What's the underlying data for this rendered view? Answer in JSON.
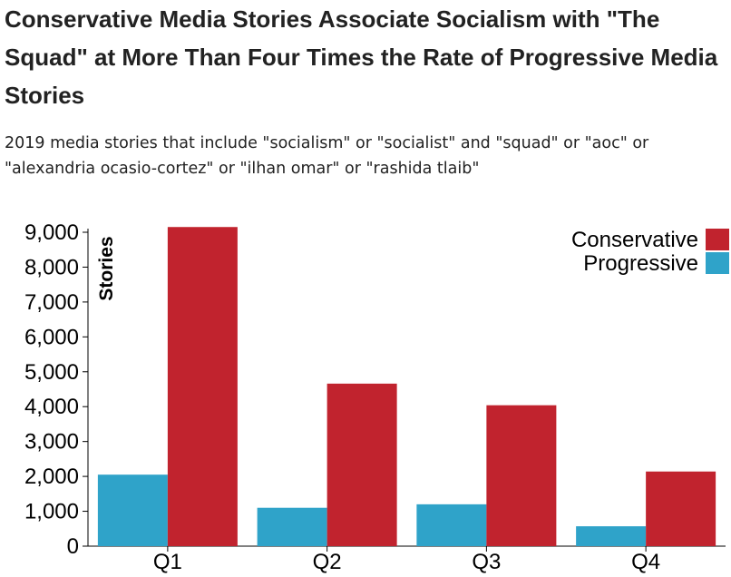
{
  "chart_data": {
    "type": "bar",
    "title": "Conservative Media Stories Associate Socialism with \"The Squad\" at More Than Four Times the Rate of Progressive Media Stories",
    "subtitle": "2019 media stories that include \"socialism\" or \"socialist\" and \"squad\" or \"aoc\" or \"alexandria ocasio-cortez\" or \"ilhan omar\" or \"rashida tlaib\"",
    "xlabel": "",
    "ylabel": "Stories",
    "ylim": [
      0,
      9000
    ],
    "yticks": [
      0,
      1000,
      2000,
      3000,
      4000,
      5000,
      6000,
      7000,
      8000,
      9000
    ],
    "ytick_labels": [
      "0",
      "1,000",
      "2,000",
      "3,000",
      "4,000",
      "5,000",
      "6,000",
      "7,000",
      "8,000",
      "9,000"
    ],
    "categories": [
      "Q1",
      "Q2",
      "Q3",
      "Q4"
    ],
    "series": [
      {
        "name": "Progressive",
        "color": "#2fa3c9",
        "values": [
          2050,
          1100,
          1200,
          570
        ]
      },
      {
        "name": "Conservative",
        "color": "#c1232e",
        "values": [
          9150,
          4660,
          4040,
          2140
        ]
      }
    ],
    "legend": {
      "position": "top-right",
      "entries": [
        {
          "label": "Conservative",
          "color": "#c1232e"
        },
        {
          "label": "Progressive",
          "color": "#2fa3c9"
        }
      ]
    },
    "grid": false
  }
}
